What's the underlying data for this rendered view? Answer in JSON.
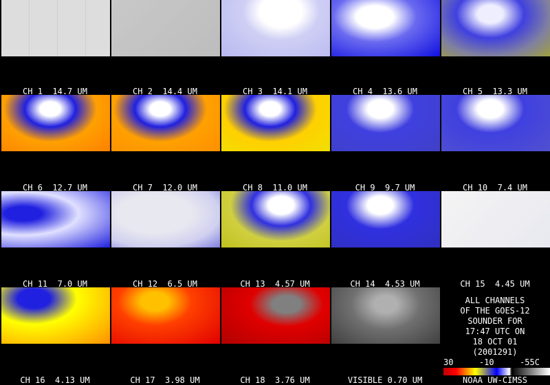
{
  "panels": [
    {
      "label": "CH 1  14.7 UM"
    },
    {
      "label": "CH 2  14.4 UM"
    },
    {
      "label": "CH 3  14.1 UM"
    },
    {
      "label": "CH 4  13.6 UM"
    },
    {
      "label": "CH 5  13.3 UM"
    },
    {
      "label": "CH 6  12.7 UM"
    },
    {
      "label": "CH 7  12.0 UM"
    },
    {
      "label": "CH 8  11.0 UM"
    },
    {
      "label": "CH 9  9.7 UM"
    },
    {
      "label": "CH 10  7.4 UM"
    },
    {
      "label": "CH 11  7.0 UM"
    },
    {
      "label": "CH 12  6.5 UM"
    },
    {
      "label": "CH 13  4.57 UM"
    },
    {
      "label": "CH 14  4.53 UM"
    },
    {
      "label": "CH 15  4.45 UM"
    },
    {
      "label": "CH 16  4.13 UM"
    },
    {
      "label": "CH 17  3.98 UM"
    },
    {
      "label": "CH 18  3.76 UM"
    },
    {
      "label": "VISIBLE 0.70 UM"
    }
  ],
  "info": {
    "lines": [
      "ALL CHANNELS",
      "OF THE GOES-12",
      "SOUNDER FOR",
      "17:47 UTC ON",
      "18 OCT 01",
      "(2001291)"
    ],
    "colorbar_labels": [
      "30",
      "-10",
      "-55C"
    ],
    "credit": "NOAA UW-CIMSS"
  }
}
